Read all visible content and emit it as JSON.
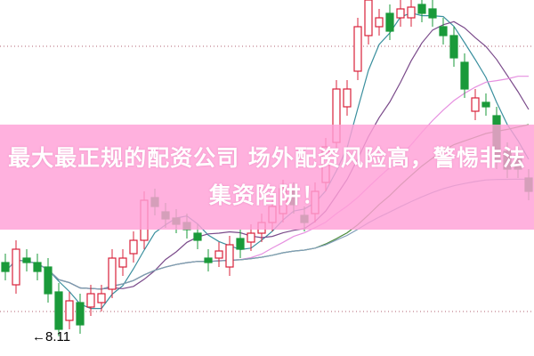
{
  "banner": {
    "line1": "最大最正规的配资公司 场外配资风险高，警惕非法",
    "line2": "集资陷阱！"
  },
  "chart_data": {
    "type": "candlestick",
    "title": "",
    "grid": "dotted horizontal",
    "colors": {
      "up": "#d8203a",
      "down": "#1a9a3a",
      "ma": [
        "#3a8f9e",
        "#7a4a8a",
        "#e690e0",
        "#4a8a3a",
        "#7f9cb8"
      ]
    },
    "moving_average_periods": [
      5,
      10,
      20,
      30,
      60
    ],
    "low_annotation": {
      "value": 8.11,
      "label": "8.11"
    },
    "candles": [
      {
        "o": 8.94,
        "c": 8.84,
        "h": 9.04,
        "l": 8.74
      },
      {
        "o": 8.69,
        "c": 9.09,
        "h": 9.19,
        "l": 8.59
      },
      {
        "o": 8.99,
        "c": 8.94,
        "h": 9.09,
        "l": 8.84
      },
      {
        "o": 8.94,
        "c": 8.84,
        "h": 9.04,
        "l": 8.74
      },
      {
        "o": 8.89,
        "c": 8.59,
        "h": 8.99,
        "l": 8.49
      },
      {
        "o": 8.61,
        "c": 8.19,
        "h": 8.71,
        "l": 8.11
      },
      {
        "o": 8.29,
        "c": 8.51,
        "h": 8.61,
        "l": 8.19
      },
      {
        "o": 8.49,
        "c": 8.24,
        "h": 8.59,
        "l": 8.14
      },
      {
        "o": 8.44,
        "c": 8.59,
        "h": 8.69,
        "l": 8.34
      },
      {
        "o": 8.49,
        "c": 8.59,
        "h": 8.69,
        "l": 8.39
      },
      {
        "o": 8.64,
        "c": 8.99,
        "h": 9.09,
        "l": 8.54
      },
      {
        "o": 8.89,
        "c": 8.99,
        "h": 9.09,
        "l": 8.79
      },
      {
        "o": 9.04,
        "c": 9.19,
        "h": 9.29,
        "l": 8.94
      },
      {
        "o": 9.19,
        "c": 9.64,
        "h": 9.74,
        "l": 9.09
      },
      {
        "o": 9.67,
        "c": 9.57,
        "h": 9.77,
        "l": 9.47
      },
      {
        "o": 9.51,
        "c": 9.43,
        "h": 9.61,
        "l": 9.33
      },
      {
        "o": 9.44,
        "c": 9.37,
        "h": 9.54,
        "l": 9.27
      },
      {
        "o": 9.39,
        "c": 9.31,
        "h": 9.49,
        "l": 9.21
      },
      {
        "o": 9.27,
        "c": 9.19,
        "h": 9.37,
        "l": 9.09
      },
      {
        "o": 8.99,
        "c": 8.94,
        "h": 9.09,
        "l": 8.84
      },
      {
        "o": 8.99,
        "c": 9.07,
        "h": 9.17,
        "l": 8.89
      },
      {
        "o": 8.89,
        "c": 9.14,
        "h": 9.24,
        "l": 8.79
      },
      {
        "o": 9.21,
        "c": 9.09,
        "h": 9.31,
        "l": 8.99
      },
      {
        "o": 9.17,
        "c": 9.27,
        "h": 9.37,
        "l": 9.07
      },
      {
        "o": 9.27,
        "c": 9.39,
        "h": 9.49,
        "l": 9.17
      },
      {
        "o": 9.39,
        "c": 9.57,
        "h": 9.67,
        "l": 9.29
      },
      {
        "o": 9.49,
        "c": 9.77,
        "h": 9.87,
        "l": 9.39
      },
      {
        "o": 9.74,
        "c": 9.59,
        "h": 9.84,
        "l": 9.49
      },
      {
        "o": 9.47,
        "c": 9.39,
        "h": 9.57,
        "l": 9.29
      },
      {
        "o": 9.49,
        "c": 9.74,
        "h": 9.84,
        "l": 9.39
      },
      {
        "o": 9.84,
        "c": 10.24,
        "h": 10.34,
        "l": 9.74
      },
      {
        "o": 10.29,
        "c": 10.89,
        "h": 10.99,
        "l": 10.19
      },
      {
        "o": 10.69,
        "c": 10.89,
        "h": 10.99,
        "l": 10.59
      },
      {
        "o": 11.09,
        "c": 11.59,
        "h": 11.69,
        "l": 10.99
      },
      {
        "o": 11.49,
        "c": 11.89,
        "h": 11.99,
        "l": 11.39
      },
      {
        "o": 11.59,
        "c": 11.69,
        "h": 11.79,
        "l": 11.49
      },
      {
        "o": 11.74,
        "c": 11.54,
        "h": 11.84,
        "l": 11.44
      },
      {
        "o": 11.69,
        "c": 11.79,
        "h": 11.89,
        "l": 11.59
      },
      {
        "o": 11.69,
        "c": 11.81,
        "h": 11.91,
        "l": 11.59
      },
      {
        "o": 11.84,
        "c": 11.74,
        "h": 11.94,
        "l": 11.64
      },
      {
        "o": 11.79,
        "c": 11.69,
        "h": 11.89,
        "l": 11.59
      },
      {
        "o": 11.59,
        "c": 11.49,
        "h": 11.69,
        "l": 11.39
      },
      {
        "o": 11.49,
        "c": 11.24,
        "h": 11.59,
        "l": 11.14
      },
      {
        "o": 11.19,
        "c": 10.89,
        "h": 11.29,
        "l": 10.79
      },
      {
        "o": 10.64,
        "c": 10.79,
        "h": 10.89,
        "l": 10.54
      },
      {
        "o": 10.74,
        "c": 10.69,
        "h": 10.84,
        "l": 10.59
      },
      {
        "o": 10.59,
        "c": 10.09,
        "h": 10.69,
        "l": 9.99
      },
      {
        "o": 10.19,
        "c": 9.99,
        "h": 10.29,
        "l": 9.89
      },
      {
        "o": 10.14,
        "c": 9.99,
        "h": 10.24,
        "l": 9.89
      },
      {
        "o": 9.89,
        "c": 9.74,
        "h": 9.99,
        "l": 9.64
      }
    ]
  }
}
